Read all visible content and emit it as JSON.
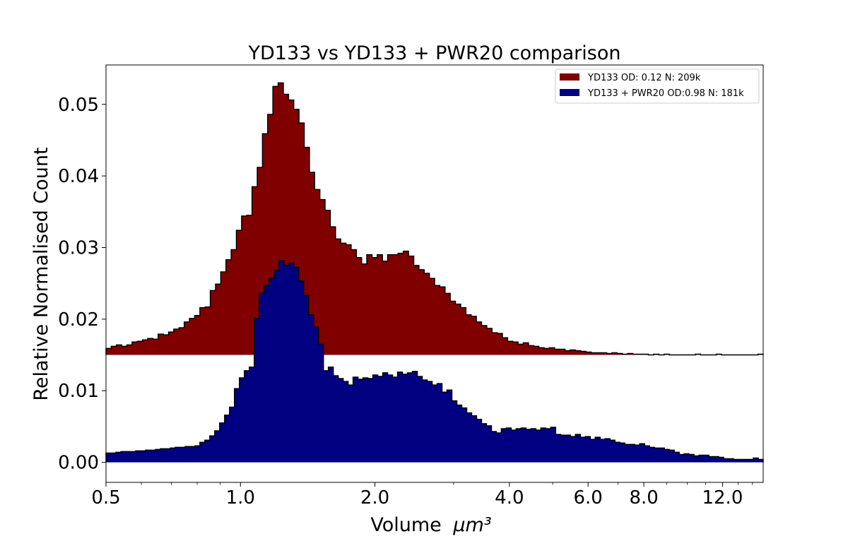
{
  "chart_data": {
    "type": "histogram",
    "title": "YD133 vs YD133 + PWR20 comparison",
    "xlabel": "Volume",
    "xlabel_unit": "μm³",
    "ylabel": "Relative Normalised Count",
    "x_scale": "log",
    "xlim": [
      0.5,
      14.8
    ],
    "ylim": [
      -0.0028,
      0.0555
    ],
    "x_ticks": [
      0.5,
      1.0,
      2.0,
      4.0,
      6.0,
      8.0,
      12.0
    ],
    "x_tick_labels": [
      "0.5",
      "1.0",
      "2.0",
      "4.0",
      "6.0",
      "8.0",
      "12.0"
    ],
    "y_ticks": [
      0.0,
      0.01,
      0.02,
      0.03,
      0.04,
      0.05
    ],
    "y_tick_labels": [
      "0.00",
      "0.01",
      "0.02",
      "0.03",
      "0.04",
      "0.05"
    ],
    "grid": false,
    "legend_position": "top-right",
    "bin_edge_start": 0.5,
    "bin_edge_end": 14.8,
    "series": [
      {
        "name": "YD133 OD: 0.12 N: 209k",
        "color": "#800000",
        "baseline": 0.015,
        "values": [
          0.0159,
          0.0162,
          0.0164,
          0.0162,
          0.0164,
          0.0168,
          0.0169,
          0.0171,
          0.0173,
          0.0172,
          0.0179,
          0.0178,
          0.0182,
          0.0186,
          0.0188,
          0.0196,
          0.0201,
          0.0205,
          0.0216,
          0.0217,
          0.024,
          0.0249,
          0.0266,
          0.0283,
          0.0297,
          0.0324,
          0.0344,
          0.0345,
          0.0385,
          0.0412,
          0.0459,
          0.0486,
          0.0525,
          0.053,
          0.0514,
          0.0506,
          0.0493,
          0.0474,
          0.044,
          0.0405,
          0.0381,
          0.0367,
          0.0352,
          0.0329,
          0.0312,
          0.0306,
          0.0304,
          0.0297,
          0.0286,
          0.0277,
          0.029,
          0.0286,
          0.029,
          0.0281,
          0.029,
          0.029,
          0.0292,
          0.0295,
          0.0288,
          0.0275,
          0.0269,
          0.0264,
          0.0257,
          0.0247,
          0.0245,
          0.0236,
          0.0225,
          0.0221,
          0.0216,
          0.0206,
          0.0204,
          0.0196,
          0.0191,
          0.0187,
          0.0181,
          0.018,
          0.0174,
          0.0169,
          0.0168,
          0.0165,
          0.0167,
          0.0163,
          0.0162,
          0.016,
          0.0159,
          0.016,
          0.0158,
          0.0158,
          0.0156,
          0.0157,
          0.0156,
          0.0155,
          0.0154,
          0.0153,
          0.0153,
          0.0153,
          0.0152,
          0.0153,
          0.0152,
          0.0151,
          0.0152,
          0.0151,
          0.0151,
          0.0151,
          0.015,
          0.0151,
          0.015,
          0.0151,
          0.015,
          0.015,
          0.015,
          0.015,
          0.015,
          0.0151,
          0.015,
          0.015,
          0.015,
          0.0151,
          0.015,
          0.015,
          0.015,
          0.015,
          0.015,
          0.015,
          0.015,
          0.0151
        ]
      },
      {
        "name": "YD133 + PWR20 OD:0.98 N: 181k",
        "color": "#000080",
        "baseline": 0.0,
        "values": [
          0.0013,
          0.0013,
          0.0014,
          0.0015,
          0.0015,
          0.0015,
          0.0016,
          0.0016,
          0.0017,
          0.0017,
          0.0018,
          0.0019,
          0.0019,
          0.002,
          0.0021,
          0.0021,
          0.0022,
          0.0022,
          0.0023,
          0.0028,
          0.0031,
          0.0037,
          0.0044,
          0.0055,
          0.0066,
          0.0077,
          0.0103,
          0.0118,
          0.0128,
          0.0133,
          0.0201,
          0.0236,
          0.0247,
          0.0257,
          0.0268,
          0.0282,
          0.0275,
          0.0278,
          0.0272,
          0.0253,
          0.0233,
          0.0206,
          0.0189,
          0.0165,
          0.0128,
          0.0133,
          0.0121,
          0.0117,
          0.0113,
          0.0108,
          0.0119,
          0.0116,
          0.0118,
          0.0117,
          0.0122,
          0.012,
          0.0125,
          0.0122,
          0.0119,
          0.0126,
          0.0123,
          0.0125,
          0.0127,
          0.012,
          0.0115,
          0.0113,
          0.0108,
          0.011,
          0.0098,
          0.0101,
          0.0086,
          0.008,
          0.0076,
          0.0069,
          0.0065,
          0.006,
          0.0054,
          0.0051,
          0.0043,
          0.0041,
          0.0047,
          0.0048,
          0.0045,
          0.0047,
          0.0048,
          0.0046,
          0.0047,
          0.0045,
          0.0048,
          0.0047,
          0.0049,
          0.0039,
          0.0038,
          0.0038,
          0.0036,
          0.0039,
          0.0035,
          0.0036,
          0.0032,
          0.0035,
          0.0032,
          0.0033,
          0.0031,
          0.0028,
          0.0027,
          0.0025,
          0.0025,
          0.0024,
          0.0026,
          0.0023,
          0.0021,
          0.002,
          0.002,
          0.0018,
          0.0017,
          0.0014,
          0.0011,
          0.0012,
          0.0011,
          0.0009,
          0.001,
          0.001,
          0.0008,
          0.0008,
          0.0007,
          0.0005,
          0.0005,
          0.0004,
          0.0004,
          0.0004,
          0.0004,
          0.0006,
          0.0004
        ]
      }
    ]
  }
}
